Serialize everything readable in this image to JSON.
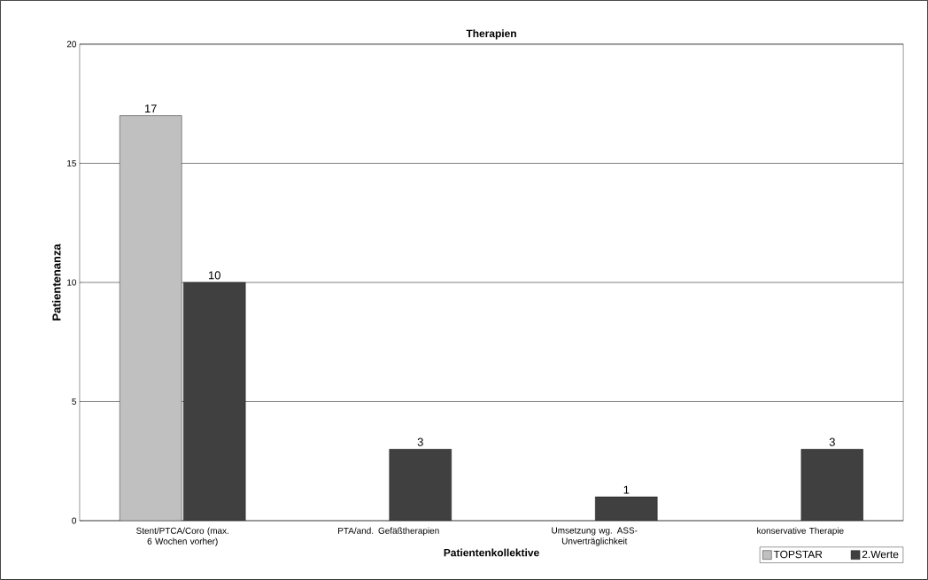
{
  "chart_data": {
    "type": "bar",
    "title": "Therapien",
    "xlabel": "Patientenkollektive",
    "ylabel": "Patientenanza",
    "categories": [
      "Stent/PTCA/Coro (max. 6 Wochen vorher)",
      "PTA/and. Gefäßtherapien",
      "Umsetzung wg. ASS-Unverträglichkeit",
      "konservative Therapie"
    ],
    "series": [
      {
        "name": "TOPSTAR",
        "color": "#c0c0c0",
        "values": [
          17,
          null,
          null,
          null
        ]
      },
      {
        "name": "2.Werte",
        "color": "#404040",
        "values": [
          10,
          3,
          1,
          3
        ]
      }
    ],
    "ylim": [
      0,
      20
    ],
    "yticks": [
      0,
      5,
      10,
      15,
      20
    ],
    "grid": "y",
    "legend": "bottom right",
    "data_labels": true
  }
}
